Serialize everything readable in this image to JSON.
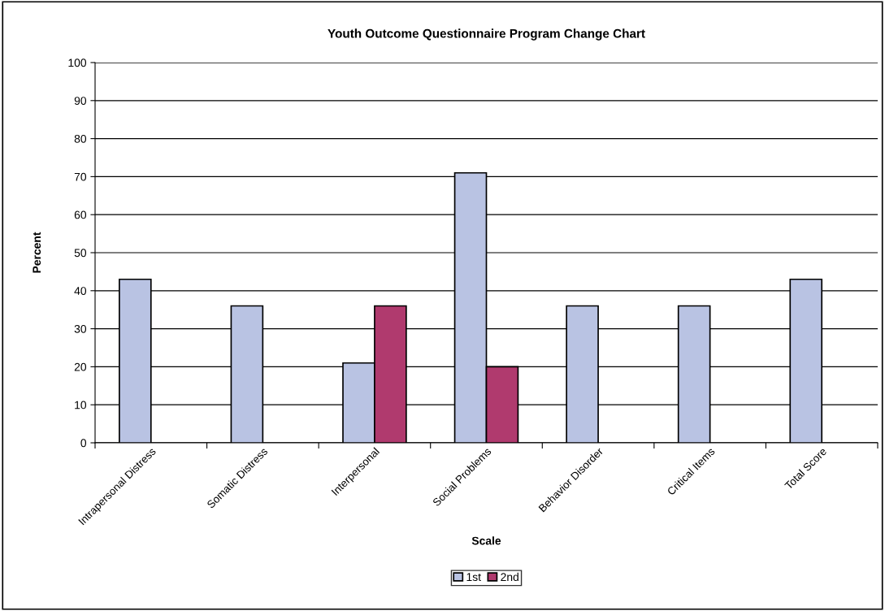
{
  "chart_data": {
    "type": "bar",
    "title": "Youth Outcome Questionnaire Program Change Chart",
    "xlabel": "Scale",
    "ylabel": "Percent",
    "categories": [
      "Intrapersonal Distress",
      "Somatic Distress",
      "Interpersonal",
      "Social Problems",
      "Behavior Disorder",
      "Critical Items",
      "Total Score"
    ],
    "series": [
      {
        "name": "1st",
        "color": "#b9c3e3",
        "values": [
          43,
          36,
          21,
          71,
          36,
          36,
          43
        ]
      },
      {
        "name": "2nd",
        "color": "#b03a6e",
        "values": [
          null,
          null,
          36,
          20,
          null,
          null,
          null
        ]
      }
    ],
    "ylim": [
      0,
      100
    ],
    "yticks": [
      0,
      10,
      20,
      30,
      40,
      50,
      60,
      70,
      80,
      90,
      100
    ],
    "grid": "y",
    "legend": "bottom"
  }
}
